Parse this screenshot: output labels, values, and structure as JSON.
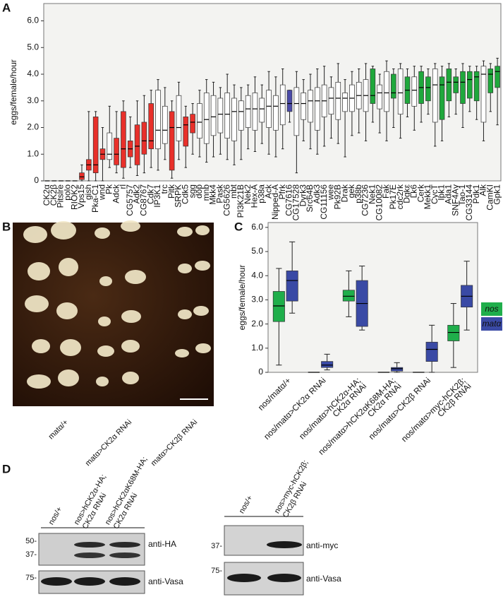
{
  "panel_labels": [
    "A",
    "B",
    "C",
    "D"
  ],
  "chart_data": [
    {
      "type": "box",
      "y_label": "eggs/female/hour",
      "categories": [
        "CK2α",
        "CK2β",
        "Pitslre",
        "polo",
        "RIOK2",
        "Vps15",
        "gish",
        "Pka-C1",
        "wnd",
        "Pk",
        "Adck",
        "rl",
        "CG5757",
        "Adk2",
        "CG8767",
        "Cdk7",
        "IP3K1",
        "trc",
        "Pitk",
        "SRPK",
        "Cdk5",
        "sgg",
        "dop",
        "mnb",
        "Mkk4",
        "Pask",
        "CG5626",
        "mbt",
        "PI3K21B",
        "Nek2",
        "Hex-A",
        "p38a",
        "Ack",
        "Nipped-A",
        "Pfrk",
        "CG7616",
        "CG17528",
        "Dyrk3",
        "Src64B",
        "Adk3",
        "CG11156",
        "wee",
        "Pk92B",
        "Drak",
        "gek",
        "p38b",
        "CG7236",
        "Nek1",
        "CG10082",
        "Fak",
        "Pk17E",
        "cdc2rk",
        "Dgkε",
        "Lk6",
        "Cerk",
        "Mekk1",
        "CycT",
        "Ipk1",
        "Ada1",
        "SNF4Aγ",
        "Tao-1",
        "CG33144",
        "Pdk1",
        "Alk",
        "CamKI",
        "Gpk1"
      ],
      "highlighted_categories": [
        0,
        1
      ],
      "highlight_color": "#e0251f",
      "boxes": [
        [
          0,
          0,
          0,
          0,
          0
        ],
        [
          0,
          0,
          0,
          0,
          0
        ],
        [
          0,
          0,
          0,
          0,
          0
        ],
        [
          0,
          0,
          0,
          0,
          0
        ],
        [
          0,
          0,
          0,
          0,
          0
        ],
        [
          0,
          0.05,
          0.15,
          0.3,
          0.6
        ],
        [
          0,
          0.4,
          0.6,
          0.8,
          2.6
        ],
        [
          0,
          0.3,
          0.6,
          2.4,
          2.6
        ],
        [
          0,
          0.8,
          1.0,
          1.2,
          2.0
        ],
        [
          0.5,
          0.8,
          1.0,
          1.8,
          2.8
        ],
        [
          0.3,
          0.6,
          1.0,
          1.6,
          2.6
        ],
        [
          0.1,
          0.5,
          1.2,
          2.6,
          3.0
        ],
        [
          0.5,
          0.9,
          1.2,
          1.5,
          2.4
        ],
        [
          0.2,
          0.6,
          1.3,
          2.1,
          3.0
        ],
        [
          0.3,
          1.0,
          1.5,
          2.2,
          3.2
        ],
        [
          0.5,
          1.2,
          1.5,
          2.9,
          3.4
        ],
        [
          0.4,
          1.2,
          1.9,
          3.4,
          3.8
        ],
        [
          0.8,
          1.4,
          1.9,
          2.8,
          3.5
        ],
        [
          0.1,
          0.4,
          2.0,
          2.6,
          3.0
        ],
        [
          0.8,
          1.5,
          2.0,
          3.2,
          3.7
        ],
        [
          0.5,
          1.3,
          2.1,
          2.4,
          2.8
        ],
        [
          1.0,
          1.8,
          2.2,
          2.5,
          2.9
        ],
        [
          0.9,
          1.6,
          2.2,
          2.9,
          3.4
        ],
        [
          0.7,
          1.4,
          2.3,
          3.3,
          3.8
        ],
        [
          0.9,
          1.7,
          2.4,
          3.2,
          3.7
        ],
        [
          1.0,
          1.8,
          2.5,
          3.1,
          3.5
        ],
        [
          0.8,
          1.6,
          2.5,
          3.3,
          4.0
        ],
        [
          0.6,
          1.5,
          2.6,
          3.1,
          3.6
        ],
        [
          0.8,
          1.9,
          2.6,
          3.0,
          3.5
        ],
        [
          1.2,
          2.0,
          2.7,
          3.2,
          3.6
        ],
        [
          1.1,
          1.9,
          2.7,
          3.3,
          3.9
        ],
        [
          1.4,
          2.2,
          2.7,
          3.1,
          3.6
        ],
        [
          1.0,
          2.0,
          2.8,
          3.4,
          4.1
        ],
        [
          0.9,
          1.9,
          2.8,
          3.2,
          3.9
        ],
        [
          1.2,
          2.1,
          2.9,
          3.6,
          4.2
        ],
        [
          2.2,
          2.6,
          2.9,
          3.4,
          3.4
        ],
        [
          0.3,
          1.7,
          2.9,
          3.5,
          4.1
        ],
        [
          1.5,
          2.3,
          2.9,
          3.3,
          3.8
        ],
        [
          1.2,
          2.2,
          3.0,
          3.4,
          4.0
        ],
        [
          1.0,
          1.9,
          3.0,
          3.5,
          4.2
        ],
        [
          1.3,
          2.4,
          3.0,
          3.6,
          4.3
        ],
        [
          1.6,
          2.5,
          3.1,
          3.5,
          3.9
        ],
        [
          1.4,
          2.3,
          3.1,
          3.7,
          4.4
        ],
        [
          0.9,
          2.6,
          3.1,
          3.3,
          3.8
        ],
        [
          1.7,
          2.6,
          3.1,
          3.6,
          4.1
        ],
        [
          1.8,
          2.7,
          3.2,
          3.7,
          4.2
        ],
        [
          1.5,
          2.6,
          3.2,
          3.8,
          4.4
        ],
        [
          2.2,
          2.9,
          3.2,
          4.2,
          4.3
        ],
        [
          1.8,
          2.7,
          3.3,
          3.6,
          4.0
        ],
        [
          1.5,
          2.6,
          3.3,
          4.1,
          4.5
        ],
        [
          2.0,
          3.1,
          3.3,
          4.0,
          4.2
        ],
        [
          1.6,
          2.5,
          3.3,
          4.2,
          4.4
        ],
        [
          2.4,
          2.9,
          3.4,
          3.9,
          4.2
        ],
        [
          1.9,
          2.8,
          3.4,
          3.9,
          4.3
        ],
        [
          2.2,
          2.9,
          3.5,
          4.1,
          4.3
        ],
        [
          2.5,
          3.0,
          3.5,
          3.9,
          4.2
        ],
        [
          1.3,
          2.2,
          3.6,
          4.2,
          4.4
        ],
        [
          1.5,
          2.3,
          3.6,
          3.9,
          4.3
        ],
        [
          2.4,
          3.0,
          3.7,
          4.2,
          4.4
        ],
        [
          2.5,
          3.3,
          3.7,
          3.9,
          4.2
        ],
        [
          2.0,
          2.9,
          3.7,
          4.1,
          4.4
        ],
        [
          2.6,
          3.1,
          3.8,
          4.1,
          4.3
        ],
        [
          2.3,
          3.0,
          3.9,
          4.1,
          4.3
        ],
        [
          1.5,
          2.2,
          4.0,
          4.3,
          4.5
        ],
        [
          2.6,
          3.3,
          4.0,
          4.2,
          4.4
        ],
        [
          2.1,
          3.5,
          4.1,
          4.3,
          4.6
        ]
      ],
      "colors": [
        "#000000",
        "#000000",
        "#000000",
        "#000000",
        "#000000",
        "#e8302a",
        "#e8302a",
        "#e8302a",
        "#e8302a",
        "#ffffff",
        "#e8302a",
        "#e8302a",
        "#e8302a",
        "#e8302a",
        "#e8302a",
        "#e8302a",
        "#ffffff",
        "#ffffff",
        "#e8302a",
        "#ffffff",
        "#e8302a",
        "#e8302a",
        "#ffffff",
        "#ffffff",
        "#ffffff",
        "#ffffff",
        "#ffffff",
        "#ffffff",
        "#ffffff",
        "#ffffff",
        "#ffffff",
        "#ffffff",
        "#ffffff",
        "#ffffff",
        "#ffffff",
        "#4a4aa8",
        "#ffffff",
        "#ffffff",
        "#ffffff",
        "#ffffff",
        "#ffffff",
        "#ffffff",
        "#ffffff",
        "#ffffff",
        "#ffffff",
        "#ffffff",
        "#ffffff",
        "#1fa83c",
        "#ffffff",
        "#ffffff",
        "#1fa83c",
        "#ffffff",
        "#1fa83c",
        "#ffffff",
        "#1fa83c",
        "#1fa83c",
        "#ffffff",
        "#1fa83c",
        "#1fa83c",
        "#1fa83c",
        "#1fa83c",
        "#1fa83c",
        "#1fa83c",
        "#ffffff",
        "#1fa83c",
        "#1fa83c"
      ],
      "ylim": [
        0,
        6.65
      ],
      "yticks": [
        0,
        {
          "value": 1,
          "label": "1.0"
        },
        {
          "value": 2,
          "label": "2.0"
        },
        {
          "value": 3,
          "label": "3.0"
        },
        {
          "value": 4,
          "label": "4.0"
        },
        {
          "value": 5,
          "label": "5.0"
        },
        {
          "value": 6,
          "label": "6.0"
        }
      ]
    },
    {
      "type": "grouped-box",
      "y_label": "eggs/female/hour",
      "categories": [
        [
          "nos/matα/+"
        ],
        [
          "nos/matα>CK2α RNAi"
        ],
        [
          "nos/matα>hCK2α-HA;",
          "CK2α RNAi"
        ],
        [
          "nos/matα>hCK2αK68M-HA;",
          "CK2α RNAi"
        ],
        [
          "nos/matα>CK2β RNAi"
        ],
        [
          "nos/matα>myc-hCK2β;",
          "CK2β RNAi"
        ]
      ],
      "series": [
        {
          "name": "nos",
          "color": "#1fae4b",
          "values": [
            [
              0.3,
              2.1,
              2.75,
              3.35,
              4.3
            ],
            [
              0,
              0,
              0,
              0,
              0
            ],
            [
              2.3,
              2.95,
              3.15,
              3.4,
              4.2
            ],
            [
              0,
              0,
              0,
              0,
              0
            ],
            [
              0,
              0,
              0,
              0,
              0
            ],
            [
              0.2,
              1.3,
              1.65,
              1.95,
              2.85
            ]
          ]
        },
        {
          "name": "matα",
          "color": "#3a4aa5",
          "values": [
            [
              2.45,
              2.95,
              3.8,
              4.2,
              5.4
            ],
            [
              0.1,
              0.2,
              0.3,
              0.45,
              0.75
            ],
            [
              1.75,
              1.9,
              2.85,
              3.8,
              4.4
            ],
            [
              0,
              0.05,
              0.15,
              0.2,
              0.4
            ],
            [
              0,
              0.45,
              0.95,
              1.25,
              1.95
            ],
            [
              1.75,
              2.7,
              3.15,
              3.6,
              4.6
            ]
          ]
        }
      ],
      "legend": "right",
      "ylim": [
        0,
        6.2
      ],
      "yticks": [
        0,
        {
          "value": 1,
          "label": "1.0"
        },
        {
          "value": 2,
          "label": "2.0"
        },
        {
          "value": 3,
          "label": "3.0"
        },
        {
          "value": 4,
          "label": "4.0"
        },
        {
          "value": 5,
          "label": "5.0"
        },
        {
          "value": 6,
          "label": "6.0"
        }
      ]
    }
  ],
  "panel_b": {
    "labels": [
      "matα/+",
      "matα>CK2α RNAi",
      "matα>CK2β RNAi"
    ]
  },
  "panel_d": {
    "left": {
      "lanes": [
        [
          "nos/+"
        ],
        [
          "nos>hCK2α-HA;",
          "CK2α RNAi"
        ],
        [
          "nos>hCK2αK68M-HA;",
          "CK2α RNAi"
        ]
      ],
      "markers": [
        "50-",
        "37-",
        "75-"
      ],
      "antibodies": [
        "anti-HA",
        "anti-Vasa"
      ]
    },
    "right": {
      "lanes": [
        [
          "nos/+"
        ],
        [
          "nos>myc-hCK2β;",
          "CK2β RNAi"
        ]
      ],
      "markers": [
        "37-",
        "75-"
      ],
      "antibodies": [
        "anti-myc",
        "anti-Vasa"
      ]
    }
  }
}
